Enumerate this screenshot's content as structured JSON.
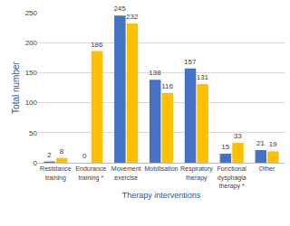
{
  "chart_data": {
    "type": "bar",
    "x_label": "Therapy interventions",
    "y_label": "Total number",
    "categories": [
      "Resistance training",
      "Endurance training *",
      "Movement exercise",
      "Mobilisation",
      "Respiratory therapy",
      "Functional dysphagia therapy *",
      "Other"
    ],
    "series": [
      {
        "color": "#4472c4",
        "values": [
          2,
          0,
          245,
          138,
          157,
          15,
          21
        ]
      },
      {
        "color": "#ffc000",
        "values": [
          8,
          186,
          232,
          116,
          131,
          33,
          19
        ]
      }
    ],
    "ylim": [
      0,
      250
    ],
    "yticks": [
      0,
      50,
      100,
      150,
      200,
      250
    ],
    "grid": true,
    "data_labels": true
  }
}
